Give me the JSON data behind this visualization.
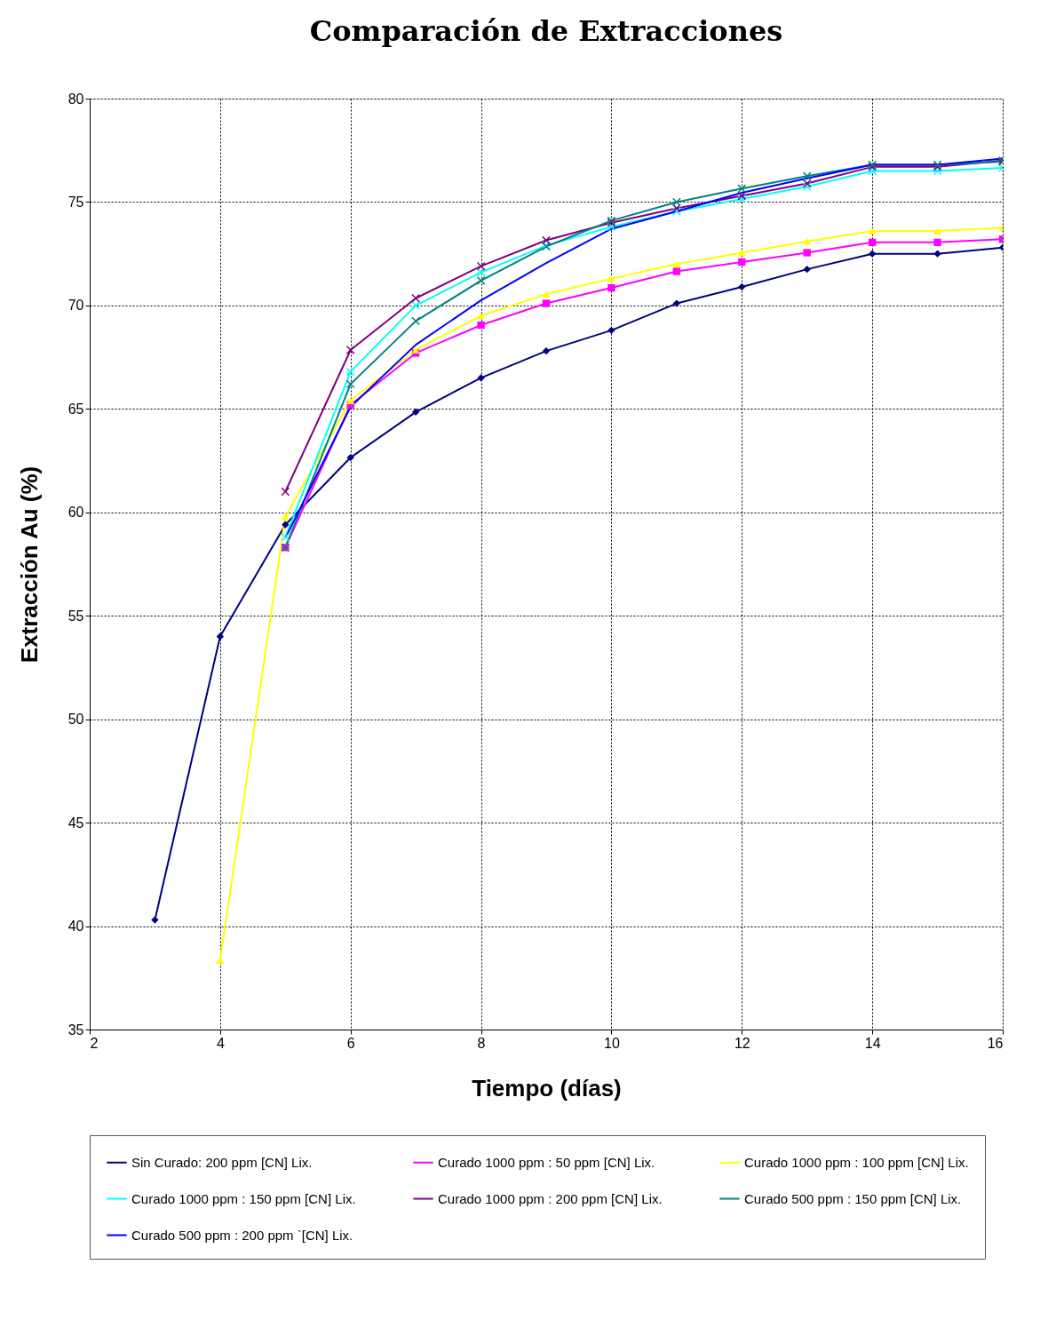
{
  "chart_data": {
    "type": "line",
    "title": "Comparación de Extracciones",
    "xlabel": "Tiempo (días)",
    "ylabel": "Extracción Au (%)",
    "x": [
      3,
      4,
      5,
      6,
      7,
      8,
      9,
      10,
      11,
      12,
      13,
      14,
      15,
      16
    ],
    "xlim": [
      2,
      16
    ],
    "xticks": [
      2,
      4,
      6,
      8,
      10,
      12,
      14,
      16
    ],
    "ylim": [
      35,
      80
    ],
    "yticks": [
      35,
      40,
      45,
      50,
      55,
      60,
      65,
      70,
      75,
      80
    ],
    "grid": true,
    "legend": "bottom",
    "line_style": "solid",
    "series": [
      {
        "name": "Sin Curado: 200 ppm [CN] Lix.",
        "color": "#000080",
        "marker": "diamond",
        "values": [
          40.3,
          54.0,
          59.4,
          62.65,
          64.85,
          66.5,
          67.8,
          68.8,
          70.1,
          70.9,
          71.75,
          72.5,
          72.5,
          72.8
        ]
      },
      {
        "name": "Curado 1000 ppm : 50 ppm [CN] Lix.",
        "color": "#ff00ff",
        "marker": "square",
        "values": [
          null,
          null,
          58.3,
          65.2,
          67.7,
          69.05,
          70.1,
          70.85,
          71.65,
          72.1,
          72.55,
          73.05,
          73.05,
          73.2
        ]
      },
      {
        "name": "Curado 1000 ppm : 100 ppm [CN] Lix.",
        "color": "#ffff00",
        "marker": "triangle",
        "values": [
          null,
          38.35,
          59.8,
          65.4,
          67.85,
          69.5,
          70.55,
          71.3,
          72.0,
          72.55,
          73.1,
          73.6,
          73.6,
          73.75
        ]
      },
      {
        "name": "Curado 1000 ppm : 150 ppm [CN] Lix.",
        "color": "#00ffff",
        "marker": "cross",
        "values": [
          null,
          null,
          58.8,
          66.8,
          70.0,
          71.6,
          72.9,
          73.8,
          74.55,
          75.15,
          75.75,
          76.5,
          76.5,
          76.65
        ]
      },
      {
        "name": "Curado 1000 ppm : 200 ppm [CN] Lix.",
        "color": "#800080",
        "marker": "cross",
        "values": [
          null,
          null,
          61.0,
          67.85,
          70.35,
          71.9,
          73.15,
          74.0,
          74.7,
          75.3,
          75.9,
          76.7,
          76.7,
          77.0
        ]
      },
      {
        "name": "Curado 500 ppm : 150 ppm [CN] Lix.",
        "color": "#008080",
        "marker": "cross",
        "values": [
          null,
          null,
          58.3,
          66.2,
          69.25,
          71.2,
          72.85,
          74.1,
          75.0,
          75.65,
          76.25,
          76.8,
          76.8,
          76.95
        ]
      },
      {
        "name": "Curado 500 ppm : 200 ppm `[CN] Lix.",
        "color": "#0000ff",
        "marker": "none",
        "values": [
          null,
          null,
          58.75,
          65.1,
          68.1,
          70.25,
          72.05,
          73.7,
          74.55,
          75.45,
          76.15,
          76.8,
          76.8,
          77.1
        ]
      }
    ]
  }
}
